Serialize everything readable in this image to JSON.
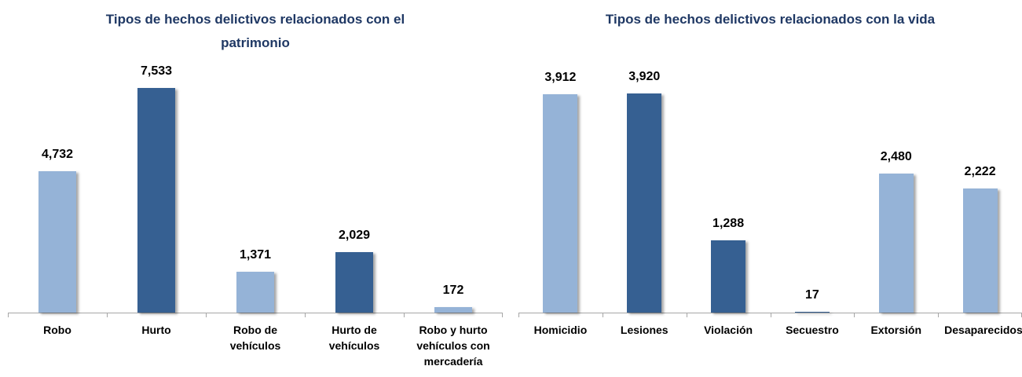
{
  "chart_data": [
    {
      "type": "bar",
      "title": "Tipos de hechos delictivos relacionados con el patrimonio",
      "categories": [
        "Robo",
        "Hurto",
        "Robo de vehículos",
        "Hurto de vehículos",
        "Robo y hurto vehículos con mercadería"
      ],
      "values": [
        4732,
        7533,
        1371,
        2029,
        172
      ],
      "value_labels": [
        "4,732",
        "7,533",
        "1,371",
        "2,029",
        "172"
      ],
      "colors": [
        "#95b3d7",
        "#366092",
        "#95b3d7",
        "#366092",
        "#95b3d7"
      ]
    },
    {
      "type": "bar",
      "title": "Tipos de hechos delictivos relacionados con la vida",
      "categories": [
        "Homicidio",
        "Lesiones",
        "Violación",
        "Secuestro",
        "Extorsión",
        "Desaparecidos"
      ],
      "values": [
        3912,
        3920,
        1288,
        17,
        2480,
        2222
      ],
      "value_labels": [
        "3,912",
        "3,920",
        "1,288",
        "17",
        "2,480",
        "2,222"
      ],
      "colors": [
        "#95b3d7",
        "#366092",
        "#366092",
        "#366092",
        "#95b3d7",
        "#95b3d7"
      ]
    }
  ]
}
